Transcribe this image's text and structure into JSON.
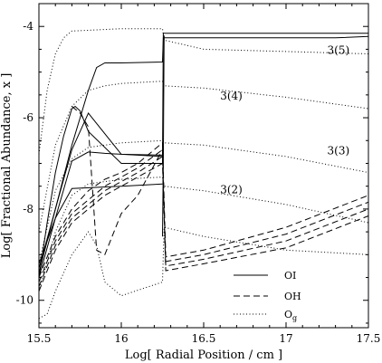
{
  "chart_data": {
    "type": "line",
    "title": "",
    "xlabel": "Log[ Radial Position / cm ]",
    "ylabel": "Log[ Fractional Abundance, x ]",
    "xlim": [
      15.5,
      17.5
    ],
    "ylim": [
      -10.6,
      -3.5
    ],
    "x_ticks": [
      15.5,
      16,
      16.5,
      17,
      17.5
    ],
    "x_tick_labels": [
      "15.5",
      "16",
      "16.5",
      "17",
      "17.5"
    ],
    "y_ticks": [
      -4,
      -6,
      -8,
      -10
    ],
    "y_tick_labels": [
      "-4",
      "-6",
      "-8",
      "-10"
    ],
    "grid": false,
    "legend_position": "bottom-right",
    "legend": [
      {
        "label": "OI",
        "style": "solid"
      },
      {
        "label": "OH",
        "style": "dashed"
      },
      {
        "label": "O_g",
        "style": "dotted",
        "display_main": "O",
        "display_sub": "g"
      }
    ],
    "annotations": [
      {
        "text": "3(5)",
        "x": 17.25,
        "y": -4.6
      },
      {
        "text": "3(4)",
        "x": 16.6,
        "y": -5.6
      },
      {
        "text": "3(3)",
        "x": 17.25,
        "y": -6.8
      },
      {
        "text": "3(2)",
        "x": 16.6,
        "y": -7.65
      }
    ],
    "series": [
      {
        "style": "solid",
        "x": [
          15.5,
          15.55,
          15.6,
          15.65,
          15.7,
          15.72,
          15.75,
          15.8,
          16.0,
          16.25,
          16.255,
          16.27,
          17.5
        ],
        "y": [
          -9.5,
          -8.3,
          -7.2,
          -6.4,
          -5.8,
          -5.75,
          -5.85,
          -6.3,
          -7.0,
          -7.0,
          -4.15,
          -4.15,
          -4.15
        ]
      },
      {
        "style": "solid",
        "x": [
          15.5,
          15.6,
          15.7,
          15.75,
          15.8,
          15.85,
          15.9,
          16.0,
          16.25,
          16.255,
          17.3,
          17.5
        ],
        "y": [
          -9.3,
          -8.0,
          -6.6,
          -6.0,
          -5.4,
          -4.9,
          -4.8,
          -4.8,
          -4.78,
          -4.25,
          -4.25,
          -4.22
        ]
      },
      {
        "style": "solid",
        "x": [
          15.5,
          15.6,
          15.7,
          15.75,
          15.8,
          16.0,
          16.25
        ],
        "y": [
          -9.4,
          -8.0,
          -6.7,
          -6.3,
          -5.9,
          -6.8,
          -6.85
        ]
      },
      {
        "style": "solid",
        "x": [
          15.5,
          15.6,
          15.7,
          15.8,
          15.9,
          16.0,
          16.25
        ],
        "y": [
          -9.5,
          -8.2,
          -6.95,
          -6.75,
          -6.78,
          -6.8,
          -6.82
        ]
      },
      {
        "style": "solid",
        "x": [
          15.5,
          15.6,
          15.7,
          16.0,
          16.25
        ],
        "y": [
          -9.2,
          -8.2,
          -7.55,
          -7.5,
          -7.45
        ]
      },
      {
        "style": "solid",
        "x": [
          16.25,
          16.255,
          16.26
        ],
        "y": [
          -8.6,
          -7.0,
          -4.2
        ]
      },
      {
        "style": "dashed",
        "x": [
          15.5,
          15.6,
          15.7,
          15.8,
          15.9,
          16.0,
          16.1,
          16.25,
          16.27,
          16.5,
          17.0,
          17.5
        ],
        "y": [
          -9.5,
          -8.6,
          -8.0,
          -7.6,
          -7.35,
          -7.2,
          -7.0,
          -6.55,
          -9.05,
          -8.9,
          -8.4,
          -7.7
        ]
      },
      {
        "style": "dashed",
        "x": [
          15.5,
          15.6,
          15.7,
          15.8,
          15.9,
          16.0,
          16.1,
          16.25,
          16.27,
          16.5,
          17.0,
          17.5
        ],
        "y": [
          -9.6,
          -8.7,
          -8.1,
          -7.8,
          -7.5,
          -7.3,
          -7.1,
          -6.7,
          -9.15,
          -9.0,
          -8.55,
          -7.85
        ]
      },
      {
        "style": "dashed",
        "x": [
          15.5,
          15.6,
          15.7,
          15.8,
          15.9,
          16.0,
          16.1,
          16.25,
          16.27,
          16.5,
          17.0,
          17.5
        ],
        "y": [
          -9.7,
          -8.8,
          -8.2,
          -7.9,
          -7.6,
          -7.4,
          -7.2,
          -6.85,
          -9.25,
          -9.1,
          -8.7,
          -8.0
        ]
      },
      {
        "style": "dashed",
        "x": [
          15.5,
          15.6,
          15.7,
          15.8,
          15.9,
          16.0,
          16.1,
          16.25,
          16.27,
          16.5,
          17.0,
          17.5
        ],
        "y": [
          -9.8,
          -8.9,
          -8.3,
          -8.0,
          -7.7,
          -7.5,
          -7.3,
          -7.0,
          -9.35,
          -9.2,
          -8.85,
          -8.15
        ]
      },
      {
        "style": "dashed",
        "x": [
          15.7,
          15.75,
          15.8,
          15.85,
          15.9,
          16.0,
          16.1,
          16.25
        ],
        "y": [
          -5.75,
          -5.9,
          -6.2,
          -8.9,
          -9.0,
          -8.1,
          -7.7,
          -6.7
        ]
      },
      {
        "style": "dotted",
        "x": [
          15.5,
          15.55,
          15.6,
          15.65,
          15.7,
          16.0,
          16.25,
          16.26,
          16.5,
          17.0,
          17.5
        ],
        "y": [
          -6.8,
          -5.4,
          -4.6,
          -4.25,
          -4.1,
          -4.05,
          -4.05,
          -4.3,
          -4.5,
          -4.55,
          -4.6
        ]
      },
      {
        "style": "dotted",
        "x": [
          15.5,
          15.6,
          15.7,
          15.8,
          15.9,
          16.0,
          16.25,
          16.26,
          16.5,
          17.0,
          17.5
        ],
        "y": [
          -8.5,
          -6.6,
          -5.75,
          -5.4,
          -5.3,
          -5.25,
          -5.2,
          -5.3,
          -5.35,
          -5.55,
          -5.8
        ]
      },
      {
        "style": "dotted",
        "x": [
          15.5,
          15.6,
          15.7,
          15.8,
          15.9,
          16.0,
          16.25,
          16.26,
          16.5,
          17.0,
          17.5
        ],
        "y": [
          -9.2,
          -7.6,
          -6.9,
          -6.65,
          -6.6,
          -6.55,
          -6.5,
          -6.55,
          -6.6,
          -6.85,
          -7.2
        ]
      },
      {
        "style": "dotted",
        "x": [
          15.5,
          15.6,
          15.7,
          15.8,
          15.9,
          16.0,
          16.25,
          16.26,
          16.5,
          17.0,
          17.5
        ],
        "y": [
          -9.8,
          -8.5,
          -7.7,
          -7.45,
          -7.4,
          -7.35,
          -7.3,
          -7.5,
          -7.6,
          -7.9,
          -8.3
        ]
      },
      {
        "style": "dotted",
        "x": [
          15.5,
          15.55,
          15.6,
          15.7,
          15.8,
          15.85,
          15.9,
          16.0,
          16.25,
          16.26,
          16.5,
          17.0,
          17.5
        ],
        "y": [
          -10.4,
          -10.3,
          -9.8,
          -9.0,
          -8.5,
          -8.8,
          -9.6,
          -9.9,
          -9.6,
          -8.4,
          -8.6,
          -8.9,
          -9.0
        ]
      }
    ]
  }
}
